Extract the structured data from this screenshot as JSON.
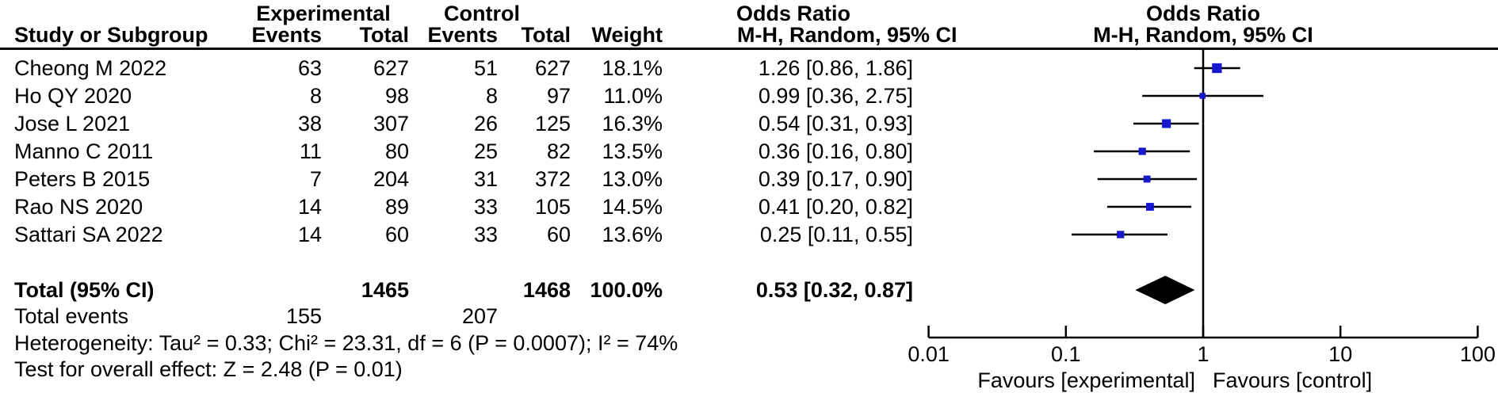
{
  "figure": {
    "headers": {
      "group_experimental": "Experimental",
      "group_control": "Control",
      "or_left_title": "Odds Ratio",
      "or_left_sub": "M-H, Random, 95% CI",
      "or_right_title": "Odds Ratio",
      "or_right_sub": "M-H, Random, 95% CI",
      "study": "Study or Subgroup",
      "events_exp": "Events",
      "total_exp": "Total",
      "events_ctl": "Events",
      "total_ctl": "Total",
      "weight": "Weight"
    }
  },
  "chart_data": {
    "type": "forest",
    "effect_measure": "Odds Ratio",
    "method": "M-H, Random, 95% CI",
    "x_scale": "log10",
    "x_range": [
      0.01,
      100
    ],
    "x_ticks": [
      0.01,
      0.1,
      1,
      10,
      100
    ],
    "x_tick_labels": [
      "0.01",
      "0.1",
      "1",
      "10",
      "100"
    ],
    "favours_left": "Favours [experimental]",
    "favours_right": "Favours [control]",
    "marker_color": "#1717CE",
    "line_color": "#000000",
    "studies": [
      {
        "name": "Cheong M 2022",
        "events_exp": "63",
        "total_exp": "627",
        "events_ctl": "51",
        "total_ctl": "627",
        "weight": "18.1%",
        "weight_pct": 18.1,
        "or": 1.26,
        "ci_low": 0.86,
        "ci_high": 1.86,
        "ci_text": "1.26 [0.86, 1.86]"
      },
      {
        "name": "Ho QY 2020",
        "events_exp": "8",
        "total_exp": "98",
        "events_ctl": "8",
        "total_ctl": "97",
        "weight": "11.0%",
        "weight_pct": 11.0,
        "or": 0.99,
        "ci_low": 0.36,
        "ci_high": 2.75,
        "ci_text": "0.99 [0.36, 2.75]"
      },
      {
        "name": "Jose L 2021",
        "events_exp": "38",
        "total_exp": "307",
        "events_ctl": "26",
        "total_ctl": "125",
        "weight": "16.3%",
        "weight_pct": 16.3,
        "or": 0.54,
        "ci_low": 0.31,
        "ci_high": 0.93,
        "ci_text": "0.54 [0.31, 0.93]"
      },
      {
        "name": "Manno C 2011",
        "events_exp": "11",
        "total_exp": "80",
        "events_ctl": "25",
        "total_ctl": "82",
        "weight": "13.5%",
        "weight_pct": 13.5,
        "or": 0.36,
        "ci_low": 0.16,
        "ci_high": 0.8,
        "ci_text": "0.36 [0.16, 0.80]"
      },
      {
        "name": "Peters B 2015",
        "events_exp": "7",
        "total_exp": "204",
        "events_ctl": "31",
        "total_ctl": "372",
        "weight": "13.0%",
        "weight_pct": 13.0,
        "or": 0.39,
        "ci_low": 0.17,
        "ci_high": 0.9,
        "ci_text": "0.39 [0.17, 0.90]"
      },
      {
        "name": "Rao NS 2020",
        "events_exp": "14",
        "total_exp": "89",
        "events_ctl": "33",
        "total_ctl": "105",
        "weight": "14.5%",
        "weight_pct": 14.5,
        "or": 0.41,
        "ci_low": 0.2,
        "ci_high": 0.82,
        "ci_text": "0.41 [0.20, 0.82]"
      },
      {
        "name": "Sattari SA 2022",
        "events_exp": "14",
        "total_exp": "60",
        "events_ctl": "33",
        "total_ctl": "60",
        "weight": "13.6%",
        "weight_pct": 13.6,
        "or": 0.25,
        "ci_low": 0.11,
        "ci_high": 0.55,
        "ci_text": "0.25 [0.11, 0.55]"
      }
    ],
    "total": {
      "label": "Total (95% CI)",
      "total_exp": "1465",
      "total_ctl": "1468",
      "weight": "100.0%",
      "or": 0.53,
      "ci_low": 0.32,
      "ci_high": 0.87,
      "ci_text": "0.53 [0.32, 0.87]"
    },
    "total_events": {
      "label": "Total events",
      "experimental": "155",
      "control": "207"
    },
    "heterogeneity": "Heterogeneity: Tau² = 0.33; Chi² = 23.31, df = 6 (P = 0.0007); I² = 74%",
    "overall_effect": "Test for overall effect: Z = 2.48 (P = 0.01)"
  }
}
